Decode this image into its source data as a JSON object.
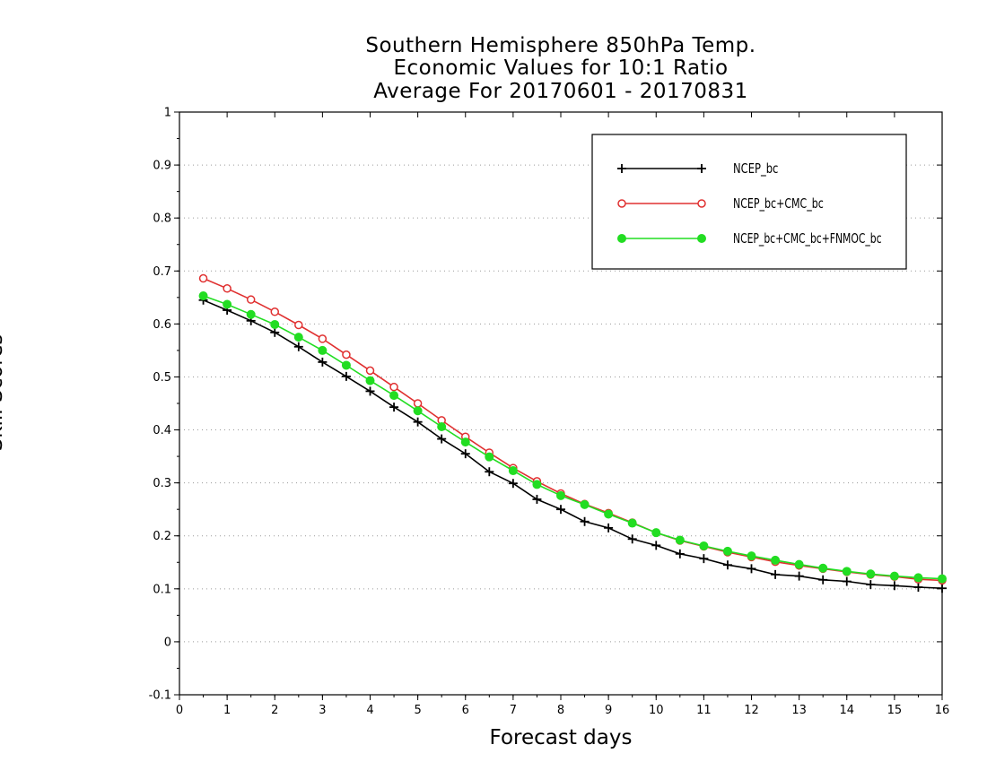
{
  "chart_data": {
    "type": "line",
    "title_lines": [
      "Southern Hemisphere 850hPa Temp.",
      "Economic Values for 10:1 Ratio",
      "Average For 20170601 - 20170831"
    ],
    "xlabel": "Forecast days",
    "ylabel": "Skill Scores",
    "xlim": [
      0,
      16
    ],
    "ylim": [
      -0.1,
      1
    ],
    "xticks": [
      0,
      1,
      2,
      3,
      4,
      5,
      6,
      7,
      8,
      9,
      10,
      11,
      12,
      13,
      14,
      15,
      16
    ],
    "xtick_labels": [
      "0",
      "1",
      "2",
      "3",
      "4",
      "5",
      "6",
      "7",
      "8",
      "9",
      "10",
      "11",
      "12",
      "13",
      "14",
      "15",
      "16"
    ],
    "yticks": [
      -0.1,
      0,
      0.1,
      0.2,
      0.3,
      0.4,
      0.5,
      0.6,
      0.7,
      0.8,
      0.9,
      1
    ],
    "ytick_labels": [
      "-0.1",
      "0",
      "0.1",
      "0.2",
      "0.3",
      "0.4",
      "0.5",
      "0.6",
      "0.7",
      "0.8",
      "0.9",
      "1"
    ],
    "grid": "horizontal-dotted",
    "legend_position": "top-right",
    "x": [
      0.5,
      1,
      1.5,
      2,
      2.5,
      3,
      3.5,
      4,
      4.5,
      5,
      5.5,
      6,
      6.5,
      7,
      7.5,
      8,
      8.5,
      9,
      9.5,
      10,
      10.5,
      11,
      11.5,
      12,
      12.5,
      13,
      13.5,
      14,
      14.5,
      15,
      15.5,
      16
    ],
    "series": [
      {
        "name": "NCEP_bc",
        "color": "#000000",
        "marker": "plus",
        "values": [
          0.645,
          0.626,
          0.606,
          0.584,
          0.557,
          0.528,
          0.501,
          0.473,
          0.443,
          0.415,
          0.383,
          0.355,
          0.321,
          0.299,
          0.269,
          0.25,
          0.227,
          0.215,
          0.194,
          0.182,
          0.166,
          0.157,
          0.145,
          0.138,
          0.127,
          0.124,
          0.117,
          0.114,
          0.108,
          0.106,
          0.103,
          0.101
        ]
      },
      {
        "name": "NCEP_bc+CMC_bc",
        "color": "#e03030",
        "marker": "open-circle",
        "values": [
          0.686,
          0.667,
          0.646,
          0.623,
          0.598,
          0.572,
          0.542,
          0.512,
          0.481,
          0.45,
          0.418,
          0.387,
          0.357,
          0.328,
          0.303,
          0.28,
          0.26,
          0.243,
          0.225,
          0.206,
          0.191,
          0.18,
          0.169,
          0.16,
          0.151,
          0.144,
          0.138,
          0.132,
          0.127,
          0.123,
          0.118,
          0.116
        ]
      },
      {
        "name": "NCEP_bc+CMC_bc+FNMOC_bc",
        "color": "#22dd22",
        "marker": "filled-circle",
        "values": [
          0.653,
          0.637,
          0.618,
          0.599,
          0.575,
          0.55,
          0.522,
          0.493,
          0.465,
          0.436,
          0.406,
          0.377,
          0.349,
          0.323,
          0.297,
          0.276,
          0.259,
          0.241,
          0.224,
          0.206,
          0.192,
          0.181,
          0.171,
          0.162,
          0.154,
          0.146,
          0.139,
          0.133,
          0.128,
          0.124,
          0.121,
          0.119
        ]
      }
    ]
  }
}
